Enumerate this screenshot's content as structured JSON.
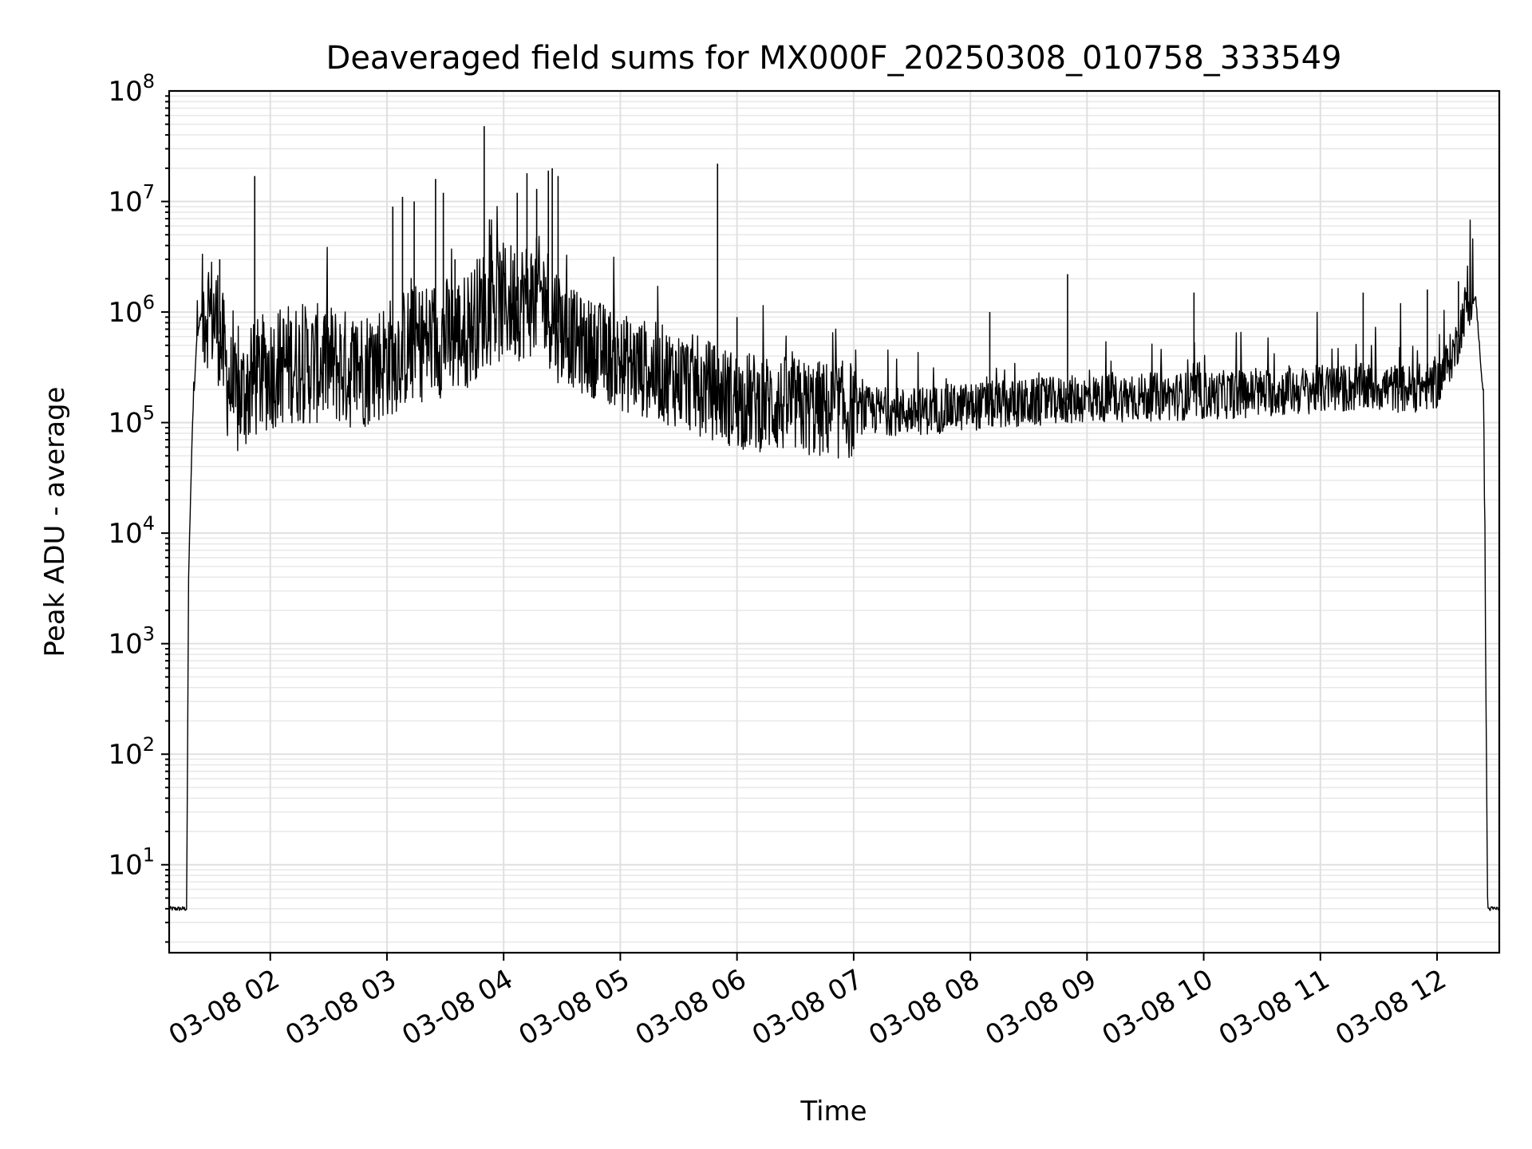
{
  "chart_data": {
    "type": "line",
    "title": "Deaveraged field sums for MX000F_20250308_010758_333549",
    "xlabel": "Time",
    "ylabel": "Peak ADU - average",
    "yscale": "log",
    "ylim": [
      1.6,
      100000000
    ],
    "xlim": [
      "2025-03-08 01:08",
      "2025-03-08 12:32"
    ],
    "grid": true,
    "legend": "none",
    "line_color": "#000000",
    "x_ticks": [
      "03-08 02",
      "03-08 03",
      "03-08 04",
      "03-08 05",
      "03-08 06",
      "03-08 07",
      "03-08 08",
      "03-08 09",
      "03-08 10",
      "03-08 11",
      "03-08 12"
    ],
    "y_ticks": [
      {
        "base": "10",
        "exp": "1"
      },
      {
        "base": "10",
        "exp": "2"
      },
      {
        "base": "10",
        "exp": "3"
      },
      {
        "base": "10",
        "exp": "4"
      },
      {
        "base": "10",
        "exp": "5"
      },
      {
        "base": "10",
        "exp": "6"
      },
      {
        "base": "10",
        "exp": "7"
      },
      {
        "base": "10",
        "exp": "8"
      }
    ],
    "series": [
      {
        "x": [
          "2025-03-08 01:08",
          "2025-03-08 01:17",
          "2025-03-08 01:18",
          "2025-03-08 01:20",
          "2025-03-08 01:22",
          "2025-03-08 01:24",
          "2025-03-08 01:28",
          "2025-03-08 01:33",
          "2025-03-08 01:38",
          "2025-03-08 01:42",
          "2025-03-08 01:48",
          "2025-03-08 01:53",
          "2025-03-08 02:00",
          "2025-03-08 02:10",
          "2025-03-08 02:20",
          "2025-03-08 02:30",
          "2025-03-08 02:40",
          "2025-03-08 02:50",
          "2025-03-08 03:00",
          "2025-03-08 03:10",
          "2025-03-08 03:20",
          "2025-03-08 03:30",
          "2025-03-08 03:40",
          "2025-03-08 03:50",
          "2025-03-08 04:00",
          "2025-03-08 04:10",
          "2025-03-08 04:20",
          "2025-03-08 04:30",
          "2025-03-08 04:40",
          "2025-03-08 04:50",
          "2025-03-08 05:00",
          "2025-03-08 05:15",
          "2025-03-08 05:30",
          "2025-03-08 05:45",
          "2025-03-08 06:00",
          "2025-03-08 06:15",
          "2025-03-08 06:30",
          "2025-03-08 06:45",
          "2025-03-08 07:00",
          "2025-03-08 07:30",
          "2025-03-08 08:00",
          "2025-03-08 08:30",
          "2025-03-08 09:00",
          "2025-03-08 09:30",
          "2025-03-08 10:00",
          "2025-03-08 10:30",
          "2025-03-08 11:00",
          "2025-03-08 11:30",
          "2025-03-08 11:45",
          "2025-03-08 12:00",
          "2025-03-08 12:10",
          "2025-03-08 12:15",
          "2025-03-08 12:20",
          "2025-03-08 12:24",
          "2025-03-08 12:26",
          "2025-03-08 12:32"
        ],
        "y": [
          4,
          4,
          4000,
          100000,
          500000,
          900000,
          1100000,
          800000,
          250000,
          150000,
          200000,
          250000,
          300000,
          350000,
          330000,
          350000,
          300000,
          320000,
          380000,
          480000,
          550000,
          600000,
          650000,
          1100000,
          1200000,
          1300000,
          1400000,
          700000,
          500000,
          450000,
          350000,
          300000,
          250000,
          200000,
          160000,
          150000,
          140000,
          130000,
          130000,
          125000,
          140000,
          150000,
          165000,
          170000,
          175000,
          185000,
          200000,
          210000,
          200000,
          220000,
          500000,
          1200000,
          1300000,
          150000,
          4,
          4
        ]
      }
    ],
    "spikes": [
      {
        "x": "2025-03-08 01:34",
        "y": 3000000
      },
      {
        "x": "2025-03-08 01:52",
        "y": 17000000
      },
      {
        "x": "2025-03-08 03:03",
        "y": 9000000
      },
      {
        "x": "2025-03-08 03:08",
        "y": 11000000
      },
      {
        "x": "2025-03-08 03:14",
        "y": 10000000
      },
      {
        "x": "2025-03-08 03:25",
        "y": 16000000
      },
      {
        "x": "2025-03-08 03:29",
        "y": 12000000
      },
      {
        "x": "2025-03-08 03:35",
        "y": 3000000
      },
      {
        "x": "2025-03-08 03:50",
        "y": 48000000
      },
      {
        "x": "2025-03-08 03:53",
        "y": 5000000
      },
      {
        "x": "2025-03-08 04:07",
        "y": 12000000
      },
      {
        "x": "2025-03-08 04:12",
        "y": 18000000
      },
      {
        "x": "2025-03-08 04:17",
        "y": 13000000
      },
      {
        "x": "2025-03-08 04:23",
        "y": 19000000
      },
      {
        "x": "2025-03-08 04:25",
        "y": 20000000
      },
      {
        "x": "2025-03-08 04:28",
        "y": 17000000
      },
      {
        "x": "2025-03-08 05:50",
        "y": 22000000
      },
      {
        "x": "2025-03-08 06:00",
        "y": 900000
      },
      {
        "x": "2025-03-08 08:10",
        "y": 1000000
      },
      {
        "x": "2025-03-08 08:50",
        "y": 2200000
      },
      {
        "x": "2025-03-08 09:55",
        "y": 1500000
      },
      {
        "x": "2025-03-08 11:22",
        "y": 1500000
      },
      {
        "x": "2025-03-08 11:55",
        "y": 1600000
      },
      {
        "x": "2025-03-08 12:11",
        "y": 1900000
      }
    ]
  }
}
